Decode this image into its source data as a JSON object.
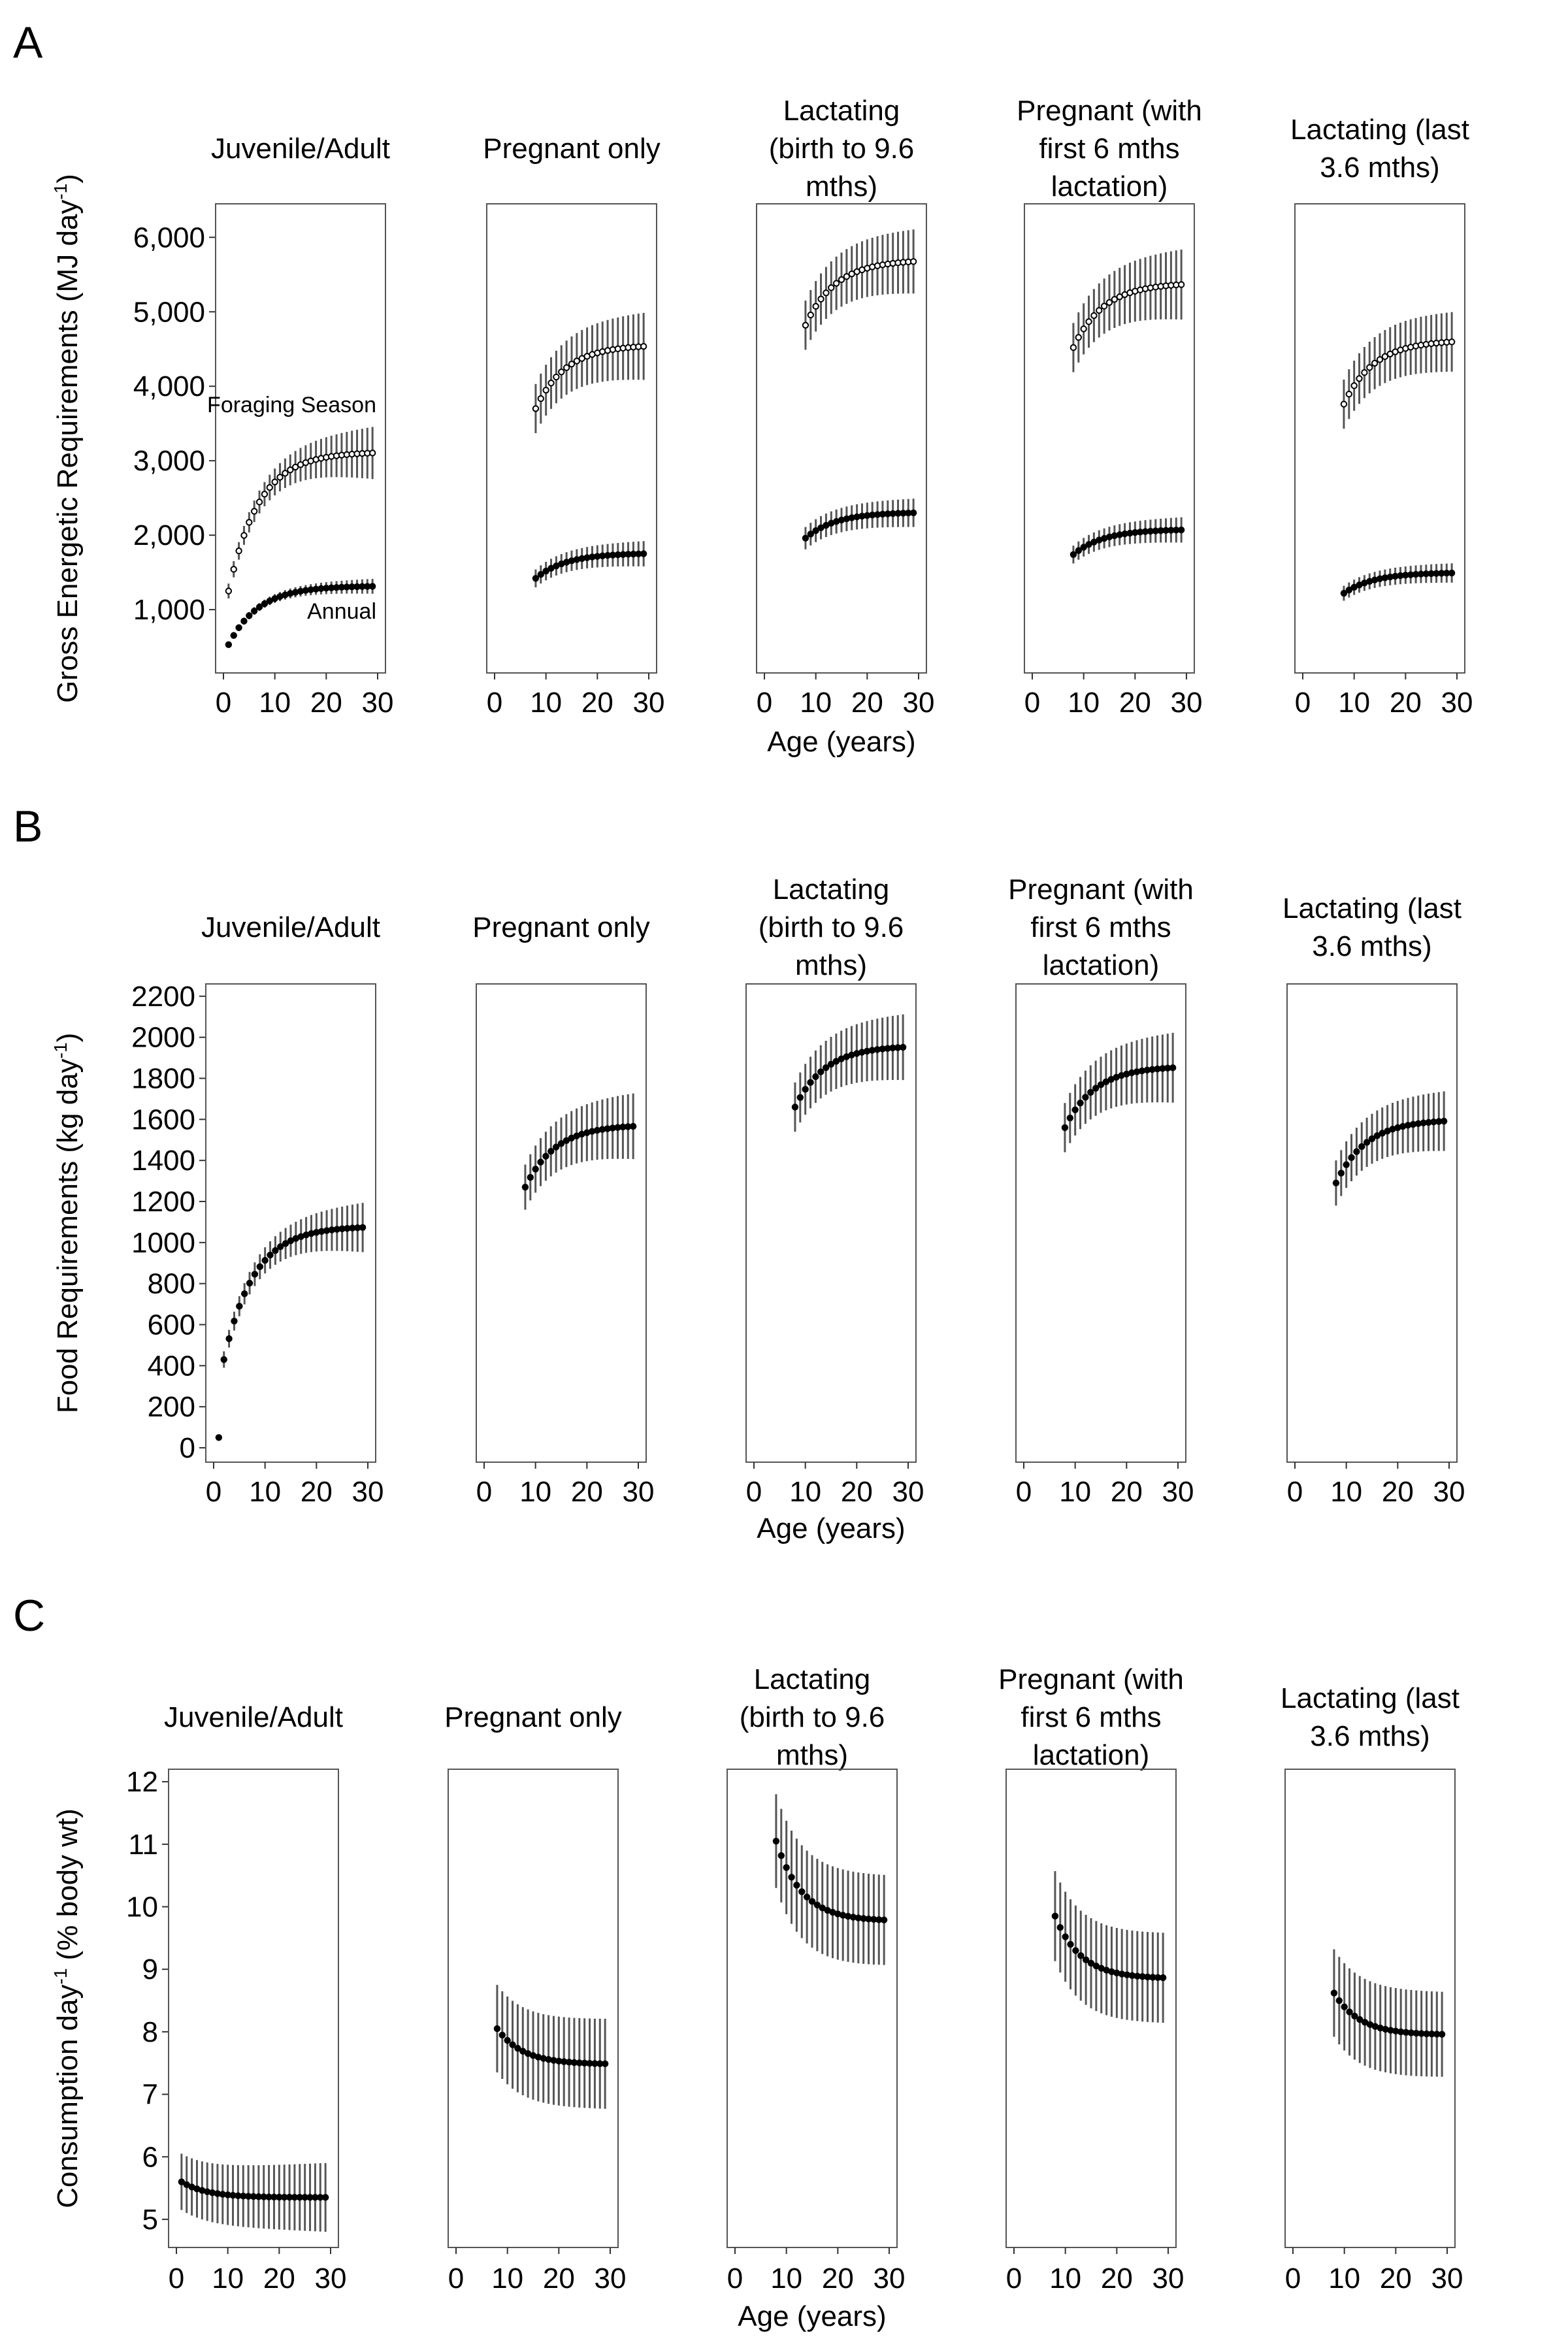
{
  "chart_data": [
    {
      "type": "scatter",
      "panel_letter": "A",
      "ylabel": "Gross Energetic Requirements (MJ day",
      "ylabel_sup": "-1",
      "ylabel_suffix": ")",
      "xlabel": "Age (years)",
      "ylim": [
        150,
        6450
      ],
      "yticks": [
        1000,
        2000,
        3000,
        4000,
        5000,
        6000
      ],
      "ytick_labels": [
        "1,000",
        "2,000",
        "3,000",
        "4,000",
        "5,000",
        "6,000"
      ],
      "xlim": [
        0,
        30
      ],
      "xticks": [
        0,
        10,
        20,
        30
      ],
      "xtick_labels": [
        "0",
        "10",
        "20",
        "30"
      ],
      "facets": [
        {
          "title": "Juvenile/Adult",
          "annotations": [
            "Foraging Season",
            "Annual"
          ],
          "series": [
            {
              "name": "Foraging Season",
              "marker": "open",
              "x_start": 1,
              "x_end": 29,
              "y_start": 1250,
              "y_plateau": 3120,
              "k": 0.17,
              "err_start": 100,
              "err_end": 350
            },
            {
              "name": "Annual",
              "marker": "filled",
              "x_start": 1,
              "x_end": 29,
              "y_start": 530,
              "y_plateau": 1320,
              "k": 0.17,
              "err_start": 40,
              "err_end": 100
            }
          ]
        },
        {
          "title": "Pregnant only",
          "annotations": [],
          "series": [
            {
              "marker": "open",
              "x_start": 8,
              "x_end": 29,
              "y_start": 3700,
              "y_plateau": 4560,
              "k": 0.17,
              "err_start": 330,
              "err_end": 450
            },
            {
              "marker": "filled",
              "x_start": 8,
              "x_end": 29,
              "y_start": 1420,
              "y_plateau": 1760,
              "k": 0.17,
              "err_start": 120,
              "err_end": 170
            }
          ]
        },
        {
          "title": "Lactating (birth to 9.6 mths)",
          "annotations": [],
          "series": [
            {
              "marker": "open",
              "x_start": 8,
              "x_end": 29,
              "y_start": 4820,
              "y_plateau": 5700,
              "k": 0.17,
              "err_start": 330,
              "err_end": 430
            },
            {
              "marker": "filled",
              "x_start": 8,
              "x_end": 29,
              "y_start": 1960,
              "y_plateau": 2310,
              "k": 0.17,
              "err_start": 150,
              "err_end": 190
            }
          ]
        },
        {
          "title": "Pregnant (with first 6 mths lactation)",
          "annotations": [],
          "series": [
            {
              "marker": "open",
              "x_start": 8,
              "x_end": 29,
              "y_start": 4520,
              "y_plateau": 5390,
              "k": 0.17,
              "err_start": 330,
              "err_end": 470
            },
            {
              "marker": "filled",
              "x_start": 8,
              "x_end": 29,
              "y_start": 1740,
              "y_plateau": 2080,
              "k": 0.17,
              "err_start": 120,
              "err_end": 170
            }
          ]
        },
        {
          "title": "Lactating (last 3.6 mths)",
          "annotations": [],
          "series": [
            {
              "marker": "open",
              "x_start": 8,
              "x_end": 29,
              "y_start": 3760,
              "y_plateau": 4620,
              "k": 0.17,
              "err_start": 330,
              "err_end": 400
            },
            {
              "marker": "filled",
              "x_start": 8,
              "x_end": 29,
              "y_start": 1220,
              "y_plateau": 1500,
              "k": 0.17,
              "err_start": 100,
              "err_end": 130
            }
          ]
        }
      ]
    },
    {
      "type": "scatter",
      "panel_letter": "B",
      "ylabel": "Food Requirements (kg day",
      "ylabel_sup": "-1",
      "ylabel_suffix": ")",
      "xlabel": "Age (years)",
      "ylim": [
        -70,
        2260
      ],
      "yticks": [
        0,
        200,
        400,
        600,
        800,
        1000,
        1200,
        1400,
        1600,
        1800,
        2000,
        2200
      ],
      "ytick_labels": [
        "0",
        "200",
        "400",
        "600",
        "800",
        "1000",
        "1200",
        "1400",
        "1600",
        "1800",
        "2000",
        "2200"
      ],
      "xlim": [
        0,
        30
      ],
      "xticks": [
        0,
        10,
        20,
        30
      ],
      "xtick_labels": [
        "0",
        "10",
        "20",
        "30"
      ],
      "facets": [
        {
          "title": "Juvenile/Adult",
          "annotations": [],
          "series": [
            {
              "marker": "filled",
              "points": [
                {
                  "x": 1,
                  "y": 50,
                  "err": 0
                }
              ]
            },
            {
              "marker": "filled",
              "x_start": 2,
              "x_end": 29,
              "y_start": 430,
              "y_plateau": 1080,
              "k": 0.17,
              "err_start": 40,
              "err_end": 120
            }
          ]
        },
        {
          "title": "Pregnant only",
          "annotations": [],
          "series": [
            {
              "marker": "filled",
              "x_start": 8,
              "x_end": 29,
              "y_start": 1270,
              "y_plateau": 1575,
              "k": 0.17,
              "err_start": 110,
              "err_end": 160
            }
          ]
        },
        {
          "title": "Lactating (birth to 9.6 mths)",
          "annotations": [],
          "series": [
            {
              "marker": "filled",
              "x_start": 8,
              "x_end": 29,
              "y_start": 1660,
              "y_plateau": 1960,
              "k": 0.17,
              "err_start": 120,
              "err_end": 160
            }
          ]
        },
        {
          "title": "Pregnant (with first 6 mths lactation)",
          "annotations": [],
          "series": [
            {
              "marker": "filled",
              "x_start": 8,
              "x_end": 29,
              "y_start": 1560,
              "y_plateau": 1860,
              "k": 0.17,
              "err_start": 120,
              "err_end": 170
            }
          ]
        },
        {
          "title": "Lactating (last 3.6 mths)",
          "annotations": [],
          "series": [
            {
              "marker": "filled",
              "x_start": 8,
              "x_end": 29,
              "y_start": 1290,
              "y_plateau": 1600,
              "k": 0.17,
              "err_start": 110,
              "err_end": 145
            }
          ]
        }
      ]
    },
    {
      "type": "scatter",
      "panel_letter": "C",
      "ylabel": "Consumption day",
      "ylabel_sup": "-1",
      "ylabel_suffix": " (% body wt)",
      "xlabel": "Age (years)",
      "ylim": [
        4.55,
        12.2
      ],
      "yticks": [
        5,
        6,
        7,
        8,
        9,
        10,
        11,
        12
      ],
      "ytick_labels": [
        "5",
        "6",
        "7",
        "8",
        "9",
        "10",
        "11",
        "12"
      ],
      "xlim": [
        0,
        30
      ],
      "xticks": [
        0,
        10,
        20,
        30
      ],
      "xtick_labels": [
        "0",
        "10",
        "20",
        "30"
      ],
      "facets": [
        {
          "title": "Juvenile/Adult",
          "annotations": [],
          "series": [
            {
              "marker": "filled",
              "x_start": 1,
              "x_end": 29,
              "y_start": 5.6,
              "y_plateau": 5.35,
              "k": 0.2,
              "err_start": 0.45,
              "err_end": 0.55
            }
          ]
        },
        {
          "title": "Pregnant only",
          "annotations": [],
          "series": [
            {
              "marker": "filled",
              "x_start": 8,
              "x_end": 29,
              "y_start": 8.05,
              "y_plateau": 7.48,
              "k": 0.2,
              "err_start": 0.7,
              "err_end": 0.72
            }
          ]
        },
        {
          "title": "Lactating (birth to 9.6 mths)",
          "annotations": [],
          "series": [
            {
              "marker": "filled",
              "x_start": 8,
              "x_end": 29,
              "y_start": 11.05,
              "y_plateau": 9.77,
              "k": 0.2,
              "err_start": 0.75,
              "err_end": 0.72
            }
          ]
        },
        {
          "title": "Pregnant (with first 6 mths lactation)",
          "annotations": [],
          "series": [
            {
              "marker": "filled",
              "x_start": 8,
              "x_end": 29,
              "y_start": 9.85,
              "y_plateau": 8.85,
              "k": 0.2,
              "err_start": 0.72,
              "err_end": 0.72
            }
          ]
        },
        {
          "title": "Lactating (last 3.6 mths)",
          "annotations": [],
          "series": [
            {
              "marker": "filled",
              "x_start": 8,
              "x_end": 29,
              "y_start": 8.62,
              "y_plateau": 7.95,
              "k": 0.2,
              "err_start": 0.7,
              "err_end": 0.68
            }
          ]
        }
      ]
    }
  ]
}
